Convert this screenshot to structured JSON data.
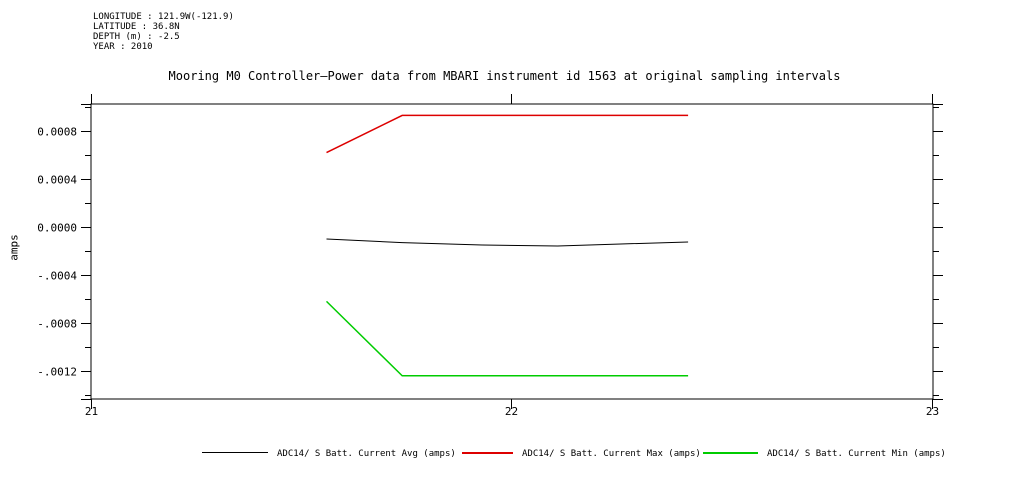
{
  "meta": {
    "longitude": "LONGITUDE : 121.9W(-121.9)",
    "latitude": "LATITUDE : 36.8N",
    "depth": "DEPTH (m) : -2.5",
    "year": "YEAR : 2010"
  },
  "chart_data": {
    "type": "line",
    "title": "Mooring M0 Controller—Power data from MBARI instrument id 1563 at original sampling intervals",
    "xlabel": "",
    "ylabel": "amps",
    "xlim": [
      21,
      23.0024
    ],
    "ylim": [
      -0.0014333,
      0.001025
    ],
    "grid": false,
    "legend_position": "bottom",
    "xticks": {
      "major": [
        21,
        22,
        23
      ],
      "labels": [
        "21",
        "22",
        "23"
      ]
    },
    "yticks": {
      "major": [
        0.0008,
        0.0004,
        0.0,
        -0.0004,
        -0.0008,
        -0.0012
      ],
      "labels": [
        "0.0008",
        "0.0004",
        "0.0000",
        "-.0004",
        "-.0008",
        "-.0012"
      ],
      "minor": [
        0.001,
        0.0006,
        0.0002,
        -0.0002,
        -0.0006,
        -0.001,
        -0.0014
      ]
    },
    "series": [
      {
        "name": "ADC14/ S Batt. Current Avg (amps)",
        "color": "#000000",
        "x": [
          21.56,
          21.74,
          21.93,
          22.11,
          22.26,
          22.42
        ],
        "y": [
          -0.0001,
          -0.00013,
          -0.00015,
          -0.000158,
          -0.000142,
          -0.000125
        ]
      },
      {
        "name": "ADC14/ S Batt. Current Max (amps)",
        "color": "#dd0000",
        "x": [
          21.56,
          21.74,
          22.42
        ],
        "y": [
          0.00062,
          0.00093,
          0.00093
        ]
      },
      {
        "name": "ADC14/ S Batt. Current Min (amps)",
        "color": "#00cc00",
        "x": [
          21.56,
          21.74,
          22.42
        ],
        "y": [
          -0.00062,
          -0.00124,
          -0.00124
        ]
      }
    ]
  }
}
